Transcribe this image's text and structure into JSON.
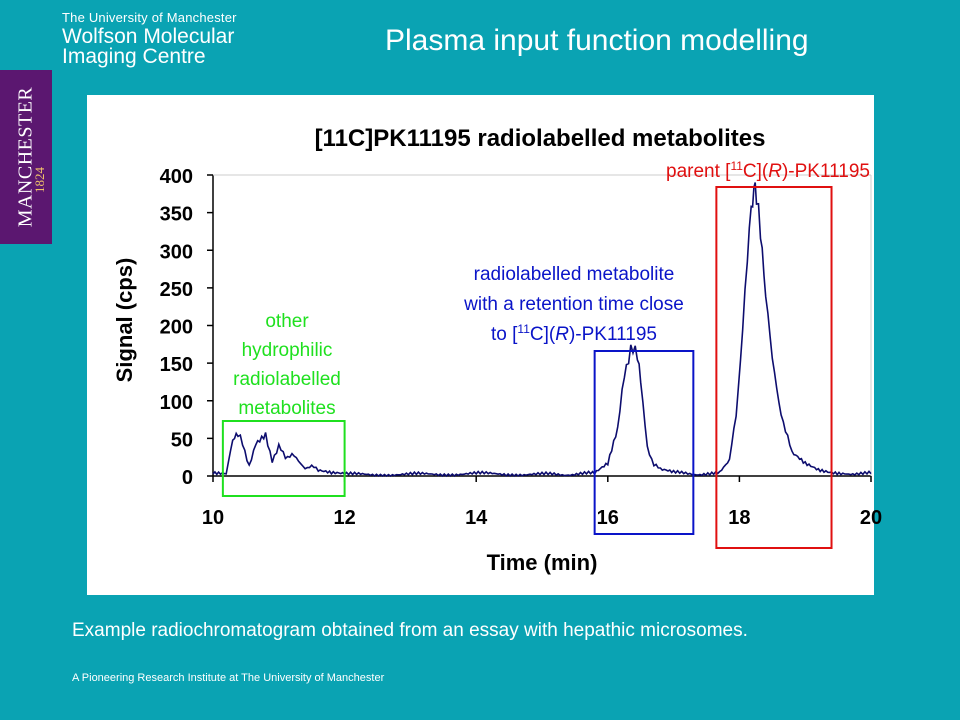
{
  "header": {
    "university": "The University of Manchester",
    "centre_line1": "Wolfson Molecular",
    "centre_line2": "Imaging Centre"
  },
  "slide_title": "Plasma input function modelling",
  "logo": {
    "text": "MANCHESTER",
    "year": "1824",
    "color": "#5b1770"
  },
  "chart_data": {
    "type": "line",
    "title": "[11C]PK11195 radiolabelled metabolites",
    "xlabel": "Time (min)",
    "ylabel": "Signal (cps)",
    "xlim": [
      10,
      20
    ],
    "ylim": [
      0,
      400
    ],
    "x_ticks": [
      "10",
      "12",
      "14",
      "16",
      "18",
      "20"
    ],
    "y_ticks": [
      "0",
      "50",
      "100",
      "150",
      "200",
      "250",
      "300",
      "350",
      "400"
    ],
    "grid": false,
    "line_color": "#0d0d6e",
    "series": [
      {
        "x": [
          10.0,
          10.2,
          10.3,
          10.38,
          10.45,
          10.55,
          10.65,
          10.8,
          10.9,
          11.0,
          11.1,
          11.2,
          11.3,
          11.4,
          11.5,
          11.6,
          11.8,
          12.0,
          13.0,
          14.0,
          15.0,
          15.8,
          16.0,
          16.15,
          16.25,
          16.35,
          16.45,
          16.5,
          16.6,
          16.7,
          16.8,
          17.0,
          17.4,
          17.7,
          17.85,
          17.95,
          18.05,
          18.12,
          18.18,
          18.22,
          18.26,
          18.32,
          18.4,
          18.5,
          18.6,
          18.7,
          18.8,
          19.0,
          19.2,
          19.4,
          19.6,
          20.0
        ],
        "y": [
          3,
          4,
          45,
          55,
          42,
          15,
          40,
          52,
          22,
          38,
          25,
          30,
          18,
          12,
          12,
          8,
          3,
          2,
          2,
          3,
          2,
          3,
          15,
          60,
          140,
          165,
          160,
          120,
          40,
          15,
          8,
          4,
          3,
          5,
          20,
          80,
          200,
          280,
          350,
          385,
          370,
          320,
          250,
          150,
          100,
          60,
          30,
          15,
          8,
          6,
          4,
          3
        ]
      }
    ],
    "annotations": {
      "green": {
        "label": [
          "other",
          "hydrophilic",
          "radiolabelled",
          "metabolites"
        ],
        "range": [
          10.15,
          12.0
        ],
        "color": "#1fe01f"
      },
      "blue": {
        "label_prefix": "to [",
        "label_sup": "11",
        "label_mid": "C](",
        "label_ital": "R",
        "label_suffix": ")-PK11195",
        "label_lines": [
          "radiolabelled metabolite",
          "with a retention time close"
        ],
        "range": [
          15.8,
          17.3
        ],
        "color": "#0a14c8"
      },
      "red": {
        "prefix": "parent [",
        "sup": "11",
        "mid": "C](",
        "ital": "R",
        "suffix": ")-PK11195",
        "range": [
          17.65,
          19.4
        ],
        "color": "#e01010"
      }
    }
  },
  "caption": "Example radiochromatogram obtained from an essay with hepathic microsomes.",
  "footer": "A Pioneering Research Institute at The University of Manchester"
}
